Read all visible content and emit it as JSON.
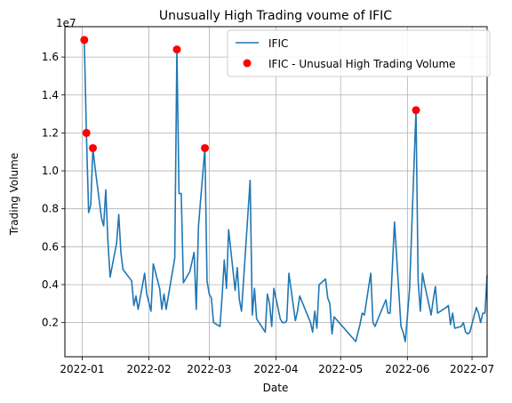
{
  "chart_data": {
    "type": "line",
    "title": "Unusually High Trading voume of IFIC",
    "xlabel": "Date",
    "ylabel": "Trading Volume",
    "y_multiplier_label": "1e7",
    "grid": true,
    "legend_position": "top-right",
    "x_tick_labels": [
      "2022-01",
      "2022-02",
      "2022-03",
      "2022-04",
      "2022-05",
      "2022-06",
      "2022-07"
    ],
    "x_ticks": [
      "2022-01-01",
      "2022-02-01",
      "2022-03-01",
      "2022-04-01",
      "2022-05-01",
      "2022-06-01",
      "2022-07-01"
    ],
    "y_ticks": [
      0.2,
      0.4,
      0.6,
      0.8,
      1.0,
      1.2,
      1.4,
      1.6
    ],
    "y_tick_labels": [
      "0.2",
      "0.4",
      "0.6",
      "0.8",
      "1.0",
      "1.2",
      "1.4",
      "1.6"
    ],
    "xlim": [
      "2021-12-24",
      "2022-07-08"
    ],
    "ylim": [
      0.02,
      1.76
    ],
    "series": [
      {
        "name": "IFIC",
        "color": "#1f77b4",
        "points": [
          [
            "2022-01-02",
            1.69
          ],
          [
            "2022-01-03",
            1.2
          ],
          [
            "2022-01-04",
            0.78
          ],
          [
            "2022-01-05",
            0.82
          ],
          [
            "2022-01-06",
            1.12
          ],
          [
            "2022-01-07",
            1.02
          ],
          [
            "2022-01-10",
            0.75
          ],
          [
            "2022-01-11",
            0.71
          ],
          [
            "2022-01-12",
            0.9
          ],
          [
            "2022-01-13",
            0.62
          ],
          [
            "2022-01-14",
            0.44
          ],
          [
            "2022-01-17",
            0.62
          ],
          [
            "2022-01-18",
            0.77
          ],
          [
            "2022-01-19",
            0.57
          ],
          [
            "2022-01-20",
            0.48
          ],
          [
            "2022-01-24",
            0.42
          ],
          [
            "2022-01-25",
            0.29
          ],
          [
            "2022-01-26",
            0.34
          ],
          [
            "2022-01-27",
            0.27
          ],
          [
            "2022-01-30",
            0.46
          ],
          [
            "2022-01-31",
            0.35
          ],
          [
            "2022-02-02",
            0.26
          ],
          [
            "2022-02-03",
            0.51
          ],
          [
            "2022-02-06",
            0.38
          ],
          [
            "2022-02-07",
            0.27
          ],
          [
            "2022-02-08",
            0.35
          ],
          [
            "2022-02-09",
            0.27
          ],
          [
            "2022-02-13",
            0.54
          ],
          [
            "2022-02-14",
            1.64
          ],
          [
            "2022-02-15",
            0.88
          ],
          [
            "2022-02-16",
            0.88
          ],
          [
            "2022-02-17",
            0.41
          ],
          [
            "2022-02-20",
            0.47
          ],
          [
            "2022-02-22",
            0.57
          ],
          [
            "2022-02-23",
            0.27
          ],
          [
            "2022-02-24",
            0.71
          ],
          [
            "2022-02-27",
            1.12
          ],
          [
            "2022-02-28",
            0.42
          ],
          [
            "2022-03-01",
            0.35
          ],
          [
            "2022-03-02",
            0.33
          ],
          [
            "2022-03-03",
            0.2
          ],
          [
            "2022-03-06",
            0.18
          ],
          [
            "2022-03-07",
            0.34
          ],
          [
            "2022-03-08",
            0.53
          ],
          [
            "2022-03-09",
            0.38
          ],
          [
            "2022-03-10",
            0.69
          ],
          [
            "2022-03-13",
            0.37
          ],
          [
            "2022-03-14",
            0.49
          ],
          [
            "2022-03-15",
            0.32
          ],
          [
            "2022-03-16",
            0.26
          ],
          [
            "2022-03-17",
            0.43
          ],
          [
            "2022-03-20",
            0.95
          ],
          [
            "2022-03-21",
            0.24
          ],
          [
            "2022-03-22",
            0.38
          ],
          [
            "2022-03-23",
            0.22
          ],
          [
            "2022-03-27",
            0.15
          ],
          [
            "2022-03-28",
            0.35
          ],
          [
            "2022-03-29",
            0.3
          ],
          [
            "2022-03-30",
            0.18
          ],
          [
            "2022-03-31",
            0.38
          ],
          [
            "2022-04-03",
            0.22
          ],
          [
            "2022-04-04",
            0.2
          ],
          [
            "2022-04-05",
            0.2
          ],
          [
            "2022-04-06",
            0.21
          ],
          [
            "2022-04-07",
            0.46
          ],
          [
            "2022-04-10",
            0.21
          ],
          [
            "2022-04-11",
            0.26
          ],
          [
            "2022-04-12",
            0.34
          ],
          [
            "2022-04-17",
            0.2
          ],
          [
            "2022-04-18",
            0.15
          ],
          [
            "2022-04-19",
            0.26
          ],
          [
            "2022-04-20",
            0.17
          ],
          [
            "2022-04-21",
            0.4
          ],
          [
            "2022-04-24",
            0.43
          ],
          [
            "2022-04-25",
            0.33
          ],
          [
            "2022-04-26",
            0.3
          ],
          [
            "2022-04-27",
            0.14
          ],
          [
            "2022-04-28",
            0.23
          ],
          [
            "2022-05-08",
            0.1
          ],
          [
            "2022-05-10",
            0.19
          ],
          [
            "2022-05-11",
            0.25
          ],
          [
            "2022-05-12",
            0.24
          ],
          [
            "2022-05-15",
            0.46
          ],
          [
            "2022-05-16",
            0.2
          ],
          [
            "2022-05-17",
            0.18
          ],
          [
            "2022-05-18",
            0.21
          ],
          [
            "2022-05-22",
            0.32
          ],
          [
            "2022-05-23",
            0.25
          ],
          [
            "2022-05-24",
            0.25
          ],
          [
            "2022-05-25",
            0.49
          ],
          [
            "2022-05-26",
            0.73
          ],
          [
            "2022-05-29",
            0.18
          ],
          [
            "2022-05-30",
            0.15
          ],
          [
            "2022-05-31",
            0.1
          ],
          [
            "2022-06-01",
            0.23
          ],
          [
            "2022-06-02",
            0.38
          ],
          [
            "2022-06-05",
            1.32
          ],
          [
            "2022-06-06",
            0.42
          ],
          [
            "2022-06-07",
            0.26
          ],
          [
            "2022-06-08",
            0.46
          ],
          [
            "2022-06-09",
            0.4
          ],
          [
            "2022-06-12",
            0.24
          ],
          [
            "2022-06-13",
            0.32
          ],
          [
            "2022-06-14",
            0.39
          ],
          [
            "2022-06-15",
            0.25
          ],
          [
            "2022-06-19",
            0.28
          ],
          [
            "2022-06-20",
            0.29
          ],
          [
            "2022-06-21",
            0.19
          ],
          [
            "2022-06-22",
            0.25
          ],
          [
            "2022-06-23",
            0.17
          ],
          [
            "2022-06-26",
            0.18
          ],
          [
            "2022-06-27",
            0.2
          ],
          [
            "2022-06-28",
            0.15
          ],
          [
            "2022-06-29",
            0.14
          ],
          [
            "2022-06-30",
            0.15
          ],
          [
            "2022-07-03",
            0.28
          ],
          [
            "2022-07-04",
            0.25
          ],
          [
            "2022-07-05",
            0.2
          ],
          [
            "2022-07-06",
            0.25
          ],
          [
            "2022-07-07",
            0.25
          ],
          [
            "2022-07-08",
            0.45
          ]
        ]
      },
      {
        "name": "IFIC - Unusual High Trading Volume",
        "color": "#ff0000",
        "kind": "scatter",
        "points": [
          [
            "2022-01-02",
            1.69
          ],
          [
            "2022-01-03",
            1.2
          ],
          [
            "2022-01-06",
            1.12
          ],
          [
            "2022-02-14",
            1.64
          ],
          [
            "2022-02-27",
            1.12
          ],
          [
            "2022-06-05",
            1.32
          ]
        ]
      }
    ]
  }
}
